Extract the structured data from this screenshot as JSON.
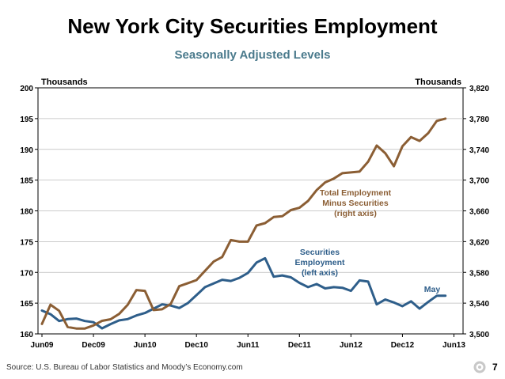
{
  "slide": {
    "title": "New York City Securities Employment",
    "subtitle": "Seasonally Adjusted Levels",
    "source": "Source: U.S. Bureau of Labor Statistics and Moody’s Economy.com",
    "page_number": "7"
  },
  "colors": {
    "securities": "#2e5e8a",
    "total": "#8b5e34",
    "axis": "#000000",
    "grid": "#bbbbbb"
  },
  "chart_data": {
    "type": "line",
    "title": "New York City Securities Employment",
    "subtitle": "Seasonally Adjusted Levels",
    "left_axis_label": "Thousands",
    "right_axis_label": "Thousands",
    "ylim_left": [
      160,
      200
    ],
    "ylim_right": [
      3500,
      3820
    ],
    "yticks_left": [
      160,
      165,
      170,
      175,
      180,
      185,
      190,
      195,
      200
    ],
    "yticks_right": [
      "3,500",
      "3,540",
      "3,580",
      "3,620",
      "3,660",
      "3,700",
      "3,740",
      "3,780",
      "3,820"
    ],
    "x_ticks": [
      {
        "label": "Jun09",
        "month": 0
      },
      {
        "label": "Dec09",
        "month": 6
      },
      {
        "label": "Jun10",
        "month": 12
      },
      {
        "label": "Dec10",
        "month": 18
      },
      {
        "label": "Jun11",
        "month": 24
      },
      {
        "label": "Dec11",
        "month": 30
      },
      {
        "label": "Jun12",
        "month": 36
      },
      {
        "label": "Dec12",
        "month": 42
      },
      {
        "label": "Jun13",
        "month": 48
      }
    ],
    "x_range": [
      0,
      48.6
    ],
    "grid": "horizontal",
    "annotations": [
      {
        "text": "Total Employment",
        "series": "total"
      },
      {
        "text": "Minus Securities",
        "series": "total"
      },
      {
        "text": "(right axis)",
        "series": "total"
      },
      {
        "text": "Securities",
        "series": "securities"
      },
      {
        "text": "Employment",
        "series": "securities"
      },
      {
        "text": "(left axis)",
        "series": "securities"
      },
      {
        "text": "May",
        "series": "securities"
      }
    ],
    "series": [
      {
        "name": "Securities Employment",
        "axis": "left",
        "key": "securities",
        "values": [
          163.8,
          163.2,
          162.1,
          162.4,
          162.5,
          162.1,
          161.9,
          160.9,
          161.6,
          162.2,
          162.4,
          163.0,
          163.4,
          164.1,
          164.8,
          164.6,
          164.2,
          165.0,
          166.3,
          167.6,
          168.2,
          168.8,
          168.6,
          169.1,
          169.9,
          171.6,
          172.3,
          169.3,
          169.5,
          169.2,
          168.3,
          167.6,
          168.1,
          167.4,
          167.6,
          167.5,
          167.0,
          168.7,
          168.5,
          164.8,
          165.6,
          165.1,
          164.5,
          165.3,
          164.1,
          165.2,
          166.2,
          166.2
        ]
      },
      {
        "name": "Total Employment Minus Securities",
        "axis": "right",
        "key": "total",
        "values": [
          3513,
          3538,
          3530,
          3509,
          3507,
          3507,
          3511,
          3517,
          3519,
          3526,
          3538,
          3557,
          3556,
          3531,
          3532,
          3539,
          3562,
          3566,
          3570,
          3582,
          3594,
          3600,
          3622,
          3620,
          3620,
          3641,
          3644,
          3652,
          3653,
          3661,
          3664,
          3673,
          3687,
          3697,
          3702,
          3709,
          3710,
          3711,
          3724,
          3745,
          3735,
          3718,
          3744,
          3756,
          3751,
          3761,
          3777,
          3780
        ]
      }
    ]
  }
}
